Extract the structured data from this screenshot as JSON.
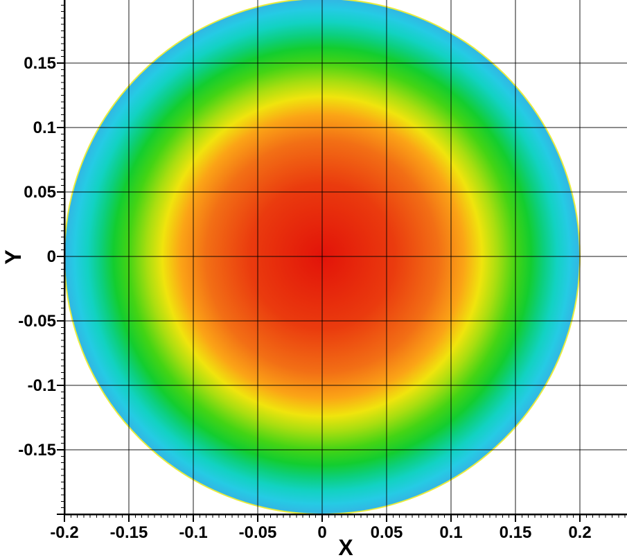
{
  "figure": {
    "background_color": "#ffffff",
    "axis_color": "#000000",
    "grid_color": "#000000",
    "text_color": "#000000"
  },
  "chart_data": {
    "type": "heatmap",
    "subtype": "filled-contour-radial",
    "title": "",
    "xlabel": "X",
    "ylabel": "Y",
    "xlim": [
      -0.2,
      0.2365
    ],
    "ylim": [
      -0.2,
      0.199
    ],
    "grid": true,
    "legend": "none",
    "x_ticks": [
      -0.2,
      -0.15,
      -0.1,
      -0.05,
      0,
      0.05,
      0.1,
      0.15,
      0.2
    ],
    "x_tick_labels": [
      "-0.2",
      "-0.15",
      "-0.1",
      "-0.05",
      "0",
      "0.05",
      "0.1",
      "0.15",
      "0.2"
    ],
    "y_ticks": [
      0.15,
      0.1,
      0.05,
      0,
      -0.05,
      -0.1,
      -0.15
    ],
    "y_tick_labels": [
      "0.15",
      "0.1",
      "0.05",
      "0",
      "-0.05",
      "-0.1",
      "-0.15"
    ],
    "major_tick_step": 0.05,
    "minor_tick_step": 0.005,
    "domain": {
      "shape": "circle",
      "center_x": 0,
      "center_y": 0,
      "radius": 0.2
    },
    "field_description": "radially symmetric scalar field over a circular domain of radius 0.2 centered at the origin; maximum at the center (red) decreasing monotonically toward the circular boundary (cyan/blue); rainbow colormap, no colorbar shown",
    "boundary_color": "#e9ec3e",
    "colormap": {
      "name": "rainbow",
      "stops": [
        {
          "radius_fraction": 0.0,
          "color": "#e21309"
        },
        {
          "radius_fraction": 0.28,
          "color": "#ea3b0e"
        },
        {
          "radius_fraction": 0.45,
          "color": "#f26f15"
        },
        {
          "radius_fraction": 0.55,
          "color": "#fba416"
        },
        {
          "radius_fraction": 0.62,
          "color": "#f0e40d"
        },
        {
          "radius_fraction": 0.68,
          "color": "#a8de10"
        },
        {
          "radius_fraction": 0.75,
          "color": "#44d414"
        },
        {
          "radius_fraction": 0.81,
          "color": "#13cd2f"
        },
        {
          "radius_fraction": 0.86,
          "color": "#0ccf7e"
        },
        {
          "radius_fraction": 0.91,
          "color": "#12d2c2"
        },
        {
          "radius_fraction": 0.96,
          "color": "#25cbe4"
        },
        {
          "radius_fraction": 1.0,
          "color": "#33b5e3"
        }
      ]
    }
  }
}
